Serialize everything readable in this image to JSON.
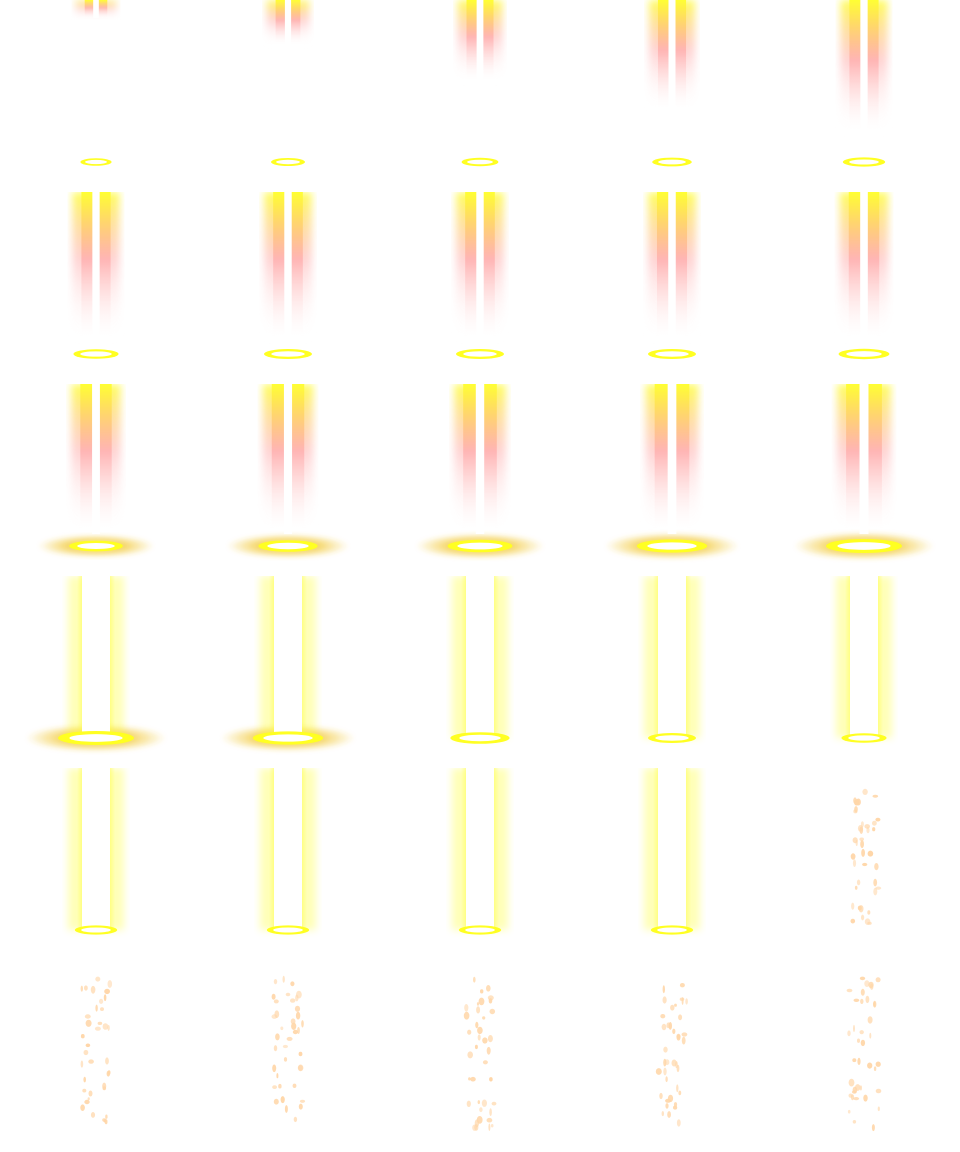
{
  "sprite_sheet": {
    "columns": 5,
    "rows": 6,
    "colors": {
      "beam_core": "#ffffff",
      "beam_glow": "#ffff33",
      "beam_edge": "#ffd000",
      "beam_tint": "#ff9c9c",
      "ring": "#ffff22",
      "ring_inner": "#ffffff",
      "splash": "#f1c52a",
      "particle": "#ffd6a8"
    },
    "frames": [
      {
        "phase": "descend",
        "beam": 0.12,
        "ring": 0.2,
        "width": 0.3
      },
      {
        "phase": "descend",
        "beam": 0.3,
        "ring": 0.25,
        "width": 0.4
      },
      {
        "phase": "descend",
        "beam": 0.55,
        "ring": 0.3,
        "width": 0.5
      },
      {
        "phase": "descend",
        "beam": 0.75,
        "ring": 0.35,
        "width": 0.55
      },
      {
        "phase": "descend",
        "beam": 0.9,
        "ring": 0.4,
        "width": 0.6
      },
      {
        "phase": "full",
        "beam": 1.0,
        "ring": 0.45,
        "width": 0.6
      },
      {
        "phase": "full",
        "beam": 1.0,
        "ring": 0.5,
        "width": 0.62
      },
      {
        "phase": "full",
        "beam": 1.0,
        "ring": 0.5,
        "width": 0.62
      },
      {
        "phase": "full",
        "beam": 1.0,
        "ring": 0.5,
        "width": 0.64
      },
      {
        "phase": "full",
        "beam": 1.0,
        "ring": 0.55,
        "width": 0.66
      },
      {
        "phase": "impact",
        "beam": 1.0,
        "ring": 0.6,
        "width": 0.7
      },
      {
        "phase": "impact",
        "beam": 1.0,
        "ring": 0.7,
        "width": 0.75
      },
      {
        "phase": "impact",
        "beam": 1.0,
        "ring": 0.8,
        "width": 0.8
      },
      {
        "phase": "impact",
        "beam": 1.0,
        "ring": 0.9,
        "width": 0.85
      },
      {
        "phase": "impact",
        "beam": 1.0,
        "ring": 1.0,
        "width": 0.9
      },
      {
        "phase": "pillar",
        "beam": 1.0,
        "ring": 1.0,
        "width": 1.0
      },
      {
        "phase": "pillar",
        "beam": 1.0,
        "ring": 0.9,
        "width": 1.0
      },
      {
        "phase": "pillar",
        "beam": 1.0,
        "ring": 0.7,
        "width": 1.0
      },
      {
        "phase": "pillar",
        "beam": 1.0,
        "ring": 0.5,
        "width": 1.0
      },
      {
        "phase": "pillar",
        "beam": 1.0,
        "ring": 0.45,
        "width": 1.0
      },
      {
        "phase": "pillar",
        "beam": 1.0,
        "ring": 0.4,
        "width": 1.0
      },
      {
        "phase": "pillar",
        "beam": 1.0,
        "ring": 0.4,
        "width": 1.0
      },
      {
        "phase": "pillar",
        "beam": 1.0,
        "ring": 0.4,
        "width": 1.0
      },
      {
        "phase": "pillar",
        "beam": 1.0,
        "ring": 0.4,
        "width": 1.0
      },
      {
        "phase": "sparkle",
        "beam": 0,
        "ring": 0,
        "width": 0
      },
      {
        "phase": "sparkle",
        "beam": 0,
        "ring": 0,
        "width": 0
      },
      {
        "phase": "sparkle",
        "beam": 0,
        "ring": 0,
        "width": 0
      },
      {
        "phase": "sparkle",
        "beam": 0,
        "ring": 0,
        "width": 0
      },
      {
        "phase": "sparkle",
        "beam": 0,
        "ring": 0,
        "width": 0
      },
      {
        "phase": "sparkle",
        "beam": 0,
        "ring": 0,
        "width": 0
      }
    ]
  }
}
